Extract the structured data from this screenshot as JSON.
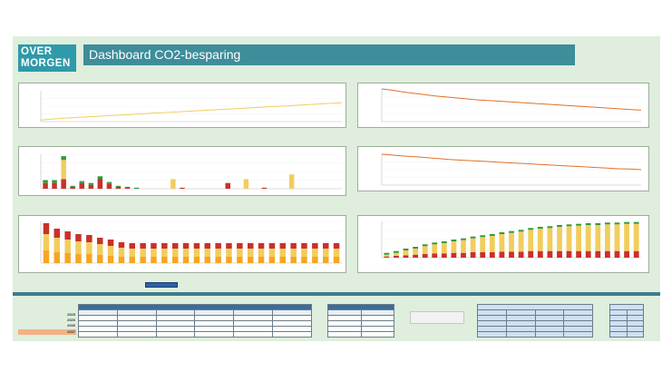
{
  "header": {
    "logo_line1": "OVER",
    "logo_line2": "MORGEN",
    "title": "Dashboard CO2-besparing"
  },
  "colors": {
    "teal": "#3d8d9a",
    "green": "#2e9b3e",
    "yellow": "#f2cd5d",
    "red": "#c9302c",
    "orange_line": "#e2702a",
    "line_yellow": "#f2cd5d"
  },
  "years": [
    "2025",
    "2026",
    "2030",
    "2037"
  ],
  "chart_data": [
    {
      "type": "line",
      "series": [
        {
          "values": [
            5,
            8,
            11,
            13,
            15,
            17,
            19,
            21,
            23,
            25,
            27,
            29,
            31,
            33,
            35,
            37,
            39,
            41,
            43,
            45,
            47,
            49,
            51,
            53,
            55,
            57,
            59,
            61
          ]
        }
      ],
      "color": "yellow"
    },
    {
      "type": "line",
      "series": [
        {
          "values": [
            100,
            96,
            91,
            87,
            83,
            79,
            76,
            73,
            70,
            67,
            65,
            63,
            61,
            59,
            57,
            55,
            53,
            51,
            49,
            47,
            45,
            43,
            41,
            39,
            37,
            35
          ]
        }
      ],
      "color": "orange"
    },
    {
      "type": "bar",
      "stacked": true,
      "series": [
        {
          "values": [
            6,
            6,
            10,
            2,
            6,
            4,
            10,
            5,
            2,
            1,
            0,
            0,
            0,
            0,
            0,
            1,
            0,
            0,
            0,
            0,
            6,
            0,
            0,
            0,
            1,
            0,
            0,
            0,
            0,
            0,
            0,
            0,
            0
          ]
        },
        {
          "values": [
            0,
            0,
            20,
            0,
            0,
            0,
            0,
            0,
            0,
            0,
            0,
            0,
            0,
            0,
            10,
            0,
            0,
            0,
            0,
            0,
            0,
            0,
            10,
            0,
            0,
            0,
            0,
            15,
            0,
            0,
            0,
            0,
            0
          ]
        },
        {
          "values": [
            3,
            3,
            4,
            1,
            2,
            2,
            3,
            2,
            1,
            1,
            1,
            0,
            0,
            0,
            0,
            0,
            0,
            0,
            0,
            0,
            0,
            0,
            0,
            0,
            0,
            0,
            0,
            0,
            0,
            0,
            0,
            0,
            0
          ]
        }
      ]
    },
    {
      "type": "line",
      "series": [
        {
          "values": [
            100,
            97,
            94,
            92,
            89,
            86,
            83,
            81,
            79,
            77,
            75,
            73,
            71,
            69,
            67,
            65,
            63,
            61,
            59,
            57,
            55,
            53,
            52,
            50
          ]
        }
      ],
      "color": "orange"
    },
    {
      "type": "bar",
      "stacked": true,
      "series": [
        {
          "values": [
            14,
            12,
            11,
            10,
            10,
            9,
            8,
            7,
            7,
            7,
            7,
            7,
            7,
            7,
            7,
            7,
            7,
            7,
            7,
            7,
            7,
            7,
            7,
            7,
            7,
            7,
            7,
            7
          ]
        },
        {
          "values": [
            18,
            16,
            15,
            14,
            13,
            12,
            11,
            10,
            9,
            9,
            9,
            9,
            9,
            9,
            9,
            9,
            9,
            9,
            9,
            9,
            9,
            9,
            9,
            9,
            9,
            9,
            9,
            9
          ]
        },
        {
          "values": [
            12,
            10,
            9,
            8,
            8,
            7,
            7,
            6,
            6,
            6,
            6,
            6,
            6,
            6,
            6,
            6,
            6,
            6,
            6,
            6,
            6,
            6,
            6,
            6,
            6,
            6,
            6,
            6
          ]
        }
      ]
    },
    {
      "type": "bar",
      "stacked": true,
      "series": [
        {
          "values": [
            2,
            3,
            4,
            5,
            6,
            7,
            7,
            8,
            8,
            9,
            9,
            9,
            10,
            10,
            10,
            11,
            11,
            11,
            11,
            11,
            11,
            11,
            11,
            11,
            11,
            11,
            11
          ]
        },
        {
          "values": [
            3,
            5,
            8,
            10,
            13,
            15,
            17,
            19,
            21,
            23,
            25,
            27,
            29,
            31,
            33,
            35,
            37,
            38,
            40,
            41,
            42,
            43,
            43,
            44,
            44,
            45,
            45
          ]
        },
        {
          "values": [
            3,
            3,
            3,
            3,
            3,
            3,
            3,
            3,
            3,
            3,
            3,
            3,
            3,
            3,
            3,
            3,
            3,
            3,
            3,
            3,
            3,
            3,
            3,
            3,
            3,
            3,
            3
          ]
        }
      ]
    }
  ]
}
